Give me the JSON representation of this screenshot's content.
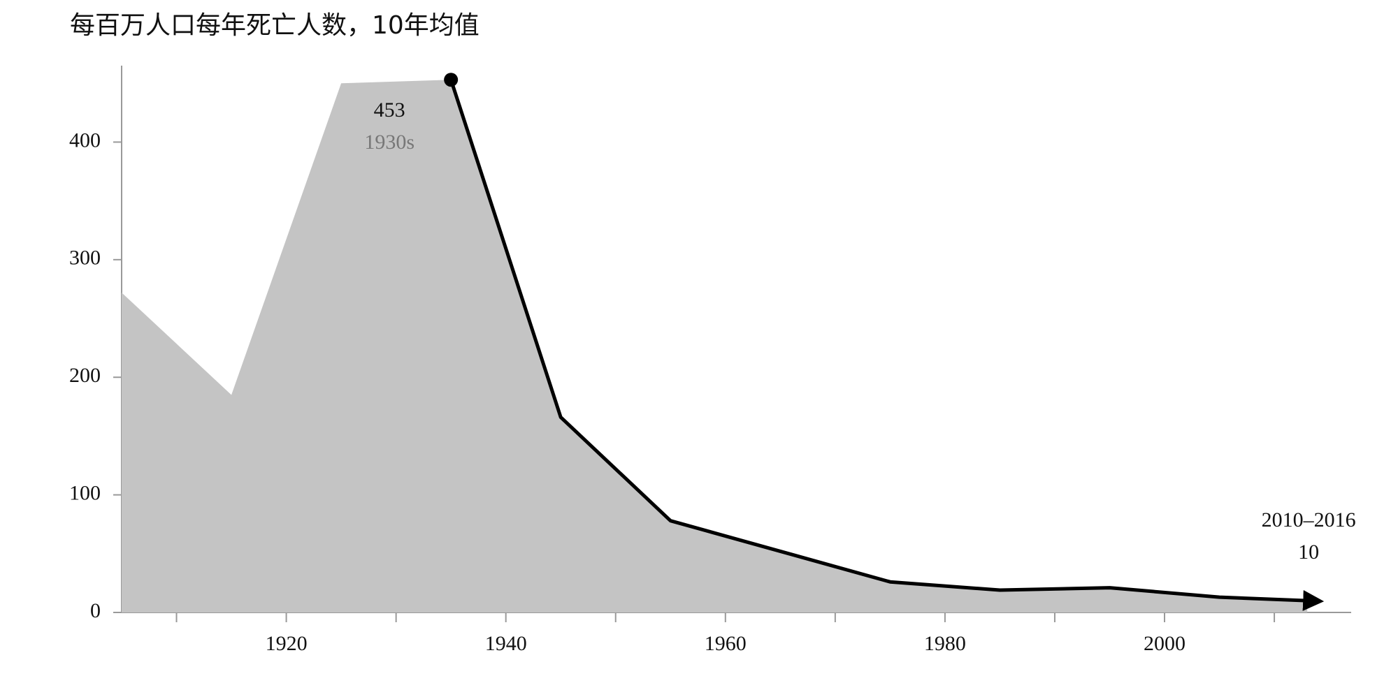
{
  "chart_data": {
    "type": "area",
    "title": "每百万人口每年死亡人数，10年均值",
    "x": [
      1905,
      1915,
      1925,
      1935,
      1945,
      1955,
      1965,
      1975,
      1985,
      1995,
      2005,
      2013
    ],
    "series": [
      {
        "color": "#c4c4c4",
        "line_color": "#000000",
        "values": [
          272,
          185,
          450,
          453,
          166,
          78,
          52,
          26,
          19,
          21,
          13,
          10
        ]
      }
    ],
    "highlight_from": 1935,
    "annotations": [
      {
        "x": 1935,
        "text": "1930s"
      },
      {
        "x": 2013,
        "text": "2010–2016"
      }
    ],
    "xlim": [
      1905,
      2017
    ],
    "xticks": [
      1920,
      1940,
      1960,
      1980,
      2000
    ],
    "xminorticks": [
      1910,
      1930,
      1950,
      1970,
      1990,
      2010
    ],
    "ylim": [
      0,
      465
    ],
    "yticks": [
      0,
      100,
      200,
      300,
      400
    ]
  }
}
